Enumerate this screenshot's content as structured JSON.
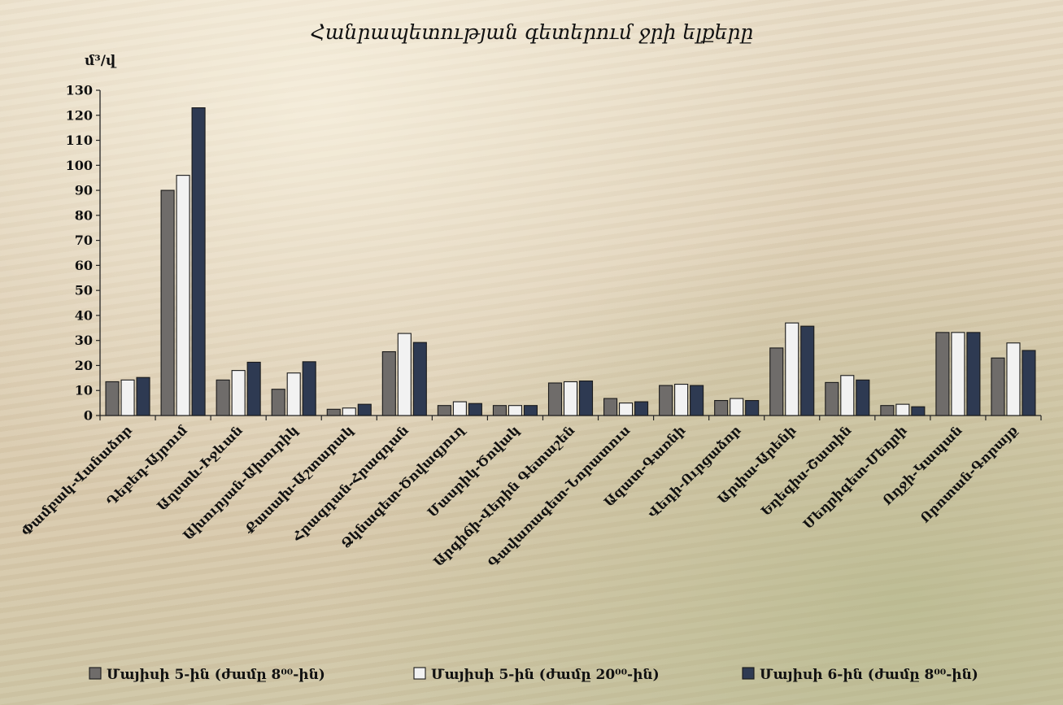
{
  "chart_data": {
    "type": "bar",
    "title": "Հանրապետության գետերում ջրի ելքերը",
    "ylabel": "մ³/վ",
    "ylim": [
      0,
      130
    ],
    "yticks": [
      0,
      10,
      20,
      30,
      40,
      50,
      60,
      70,
      80,
      90,
      100,
      110,
      120,
      130
    ],
    "legend_position": "bottom",
    "categories": [
      "Փամբակ-Վանաձոր",
      "Դեբեդ-Այրում",
      "Աղստև-Իջևան",
      "Ախուրյան-Ախուրիկ",
      "Քասախ-Աշտարակ",
      "Հրազդան-Հրազդան",
      "Ձկնագետ-Ծովագյուղ",
      "Մասրիկ-Ծովակ",
      "Արգիճի-Վերին Գետաշեն",
      "Գավառագետ-Նորատուս",
      "Ազատ-Գառնի",
      "Վեդի-Ուրցաձոր",
      "Արփա-Արենի",
      "Եղեգիս-Շատին",
      "Մեղրիգետ-Մեղրի",
      "Ողջի-Կապան",
      "Որոտան-Գորայք"
    ],
    "series": [
      {
        "name": "Մայիսի 5-ին (ժամը 8⁰⁰-ին)",
        "color": "#6f6c6a",
        "values": [
          13.5,
          90,
          14.2,
          10.5,
          2.5,
          25.5,
          4,
          4,
          13,
          6.8,
          12,
          6,
          27,
          13.2,
          4,
          33.2,
          23
        ]
      },
      {
        "name": "Մայիսի 5-ին (ժամը 20⁰⁰-ին)",
        "color": "#f2f2f2",
        "values": [
          14.2,
          96,
          18,
          17,
          3,
          32.8,
          5.5,
          4,
          13.5,
          5,
          12.5,
          6.8,
          37,
          16,
          4.5,
          33.2,
          29
        ]
      },
      {
        "name": "Մայիսի 6-ին (ժամը 8⁰⁰-ին)",
        "color": "#2e3a52",
        "values": [
          15.2,
          123,
          21.3,
          21.5,
          4.5,
          29.2,
          4.8,
          4,
          13.8,
          5.5,
          12,
          6,
          35.7,
          14.2,
          3.5,
          33.2,
          26
        ]
      }
    ]
  }
}
